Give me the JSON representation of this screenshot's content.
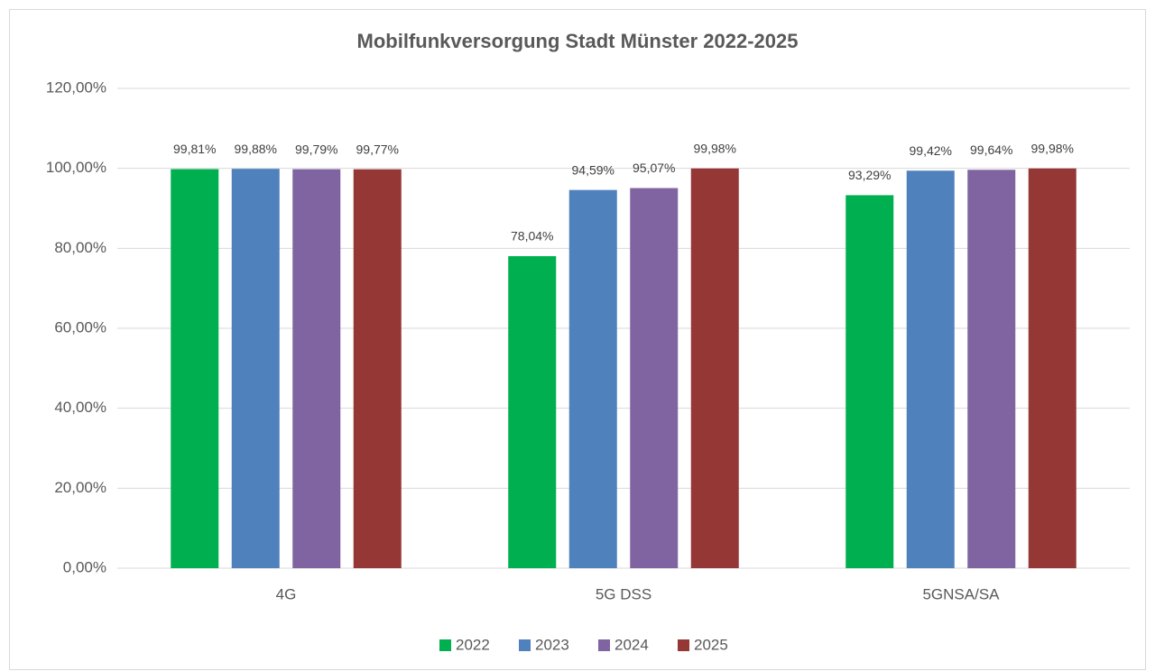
{
  "chart_data": {
    "type": "bar",
    "title": "Mobilfunkversorgung Stadt Münster 2022-2025",
    "categories": [
      "4G",
      "5G DSS",
      "5GNSA/SA"
    ],
    "series": [
      {
        "name": "2022",
        "color": "#00b050",
        "values": [
          99.81,
          78.04,
          93.29
        ],
        "value_labels": [
          "99,81%",
          "78,04%",
          "93,29%"
        ]
      },
      {
        "name": "2023",
        "color": "#4f81bd",
        "values": [
          99.88,
          94.59,
          99.42
        ],
        "value_labels": [
          "99,88%",
          "94,59%",
          "99,42%"
        ]
      },
      {
        "name": "2024",
        "color": "#8064a2",
        "values": [
          99.79,
          95.07,
          99.64
        ],
        "value_labels": [
          "99,79%",
          "95,07%",
          "99,64%"
        ]
      },
      {
        "name": "2025",
        "color": "#953735",
        "values": [
          99.77,
          99.98,
          99.98
        ],
        "value_labels": [
          "99,77%",
          "99,98%",
          "99,98%"
        ]
      }
    ],
    "ylim": [
      0,
      120
    ],
    "yticks": [
      {
        "value": 0,
        "label": "0,00%"
      },
      {
        "value": 20,
        "label": "20,00%"
      },
      {
        "value": 40,
        "label": "40,00%"
      },
      {
        "value": 60,
        "label": "60,00%"
      },
      {
        "value": 80,
        "label": "80,00%"
      },
      {
        "value": 100,
        "label": "100,00%"
      },
      {
        "value": 120,
        "label": "120,00%"
      }
    ],
    "grid": true,
    "legend": "bottom"
  }
}
